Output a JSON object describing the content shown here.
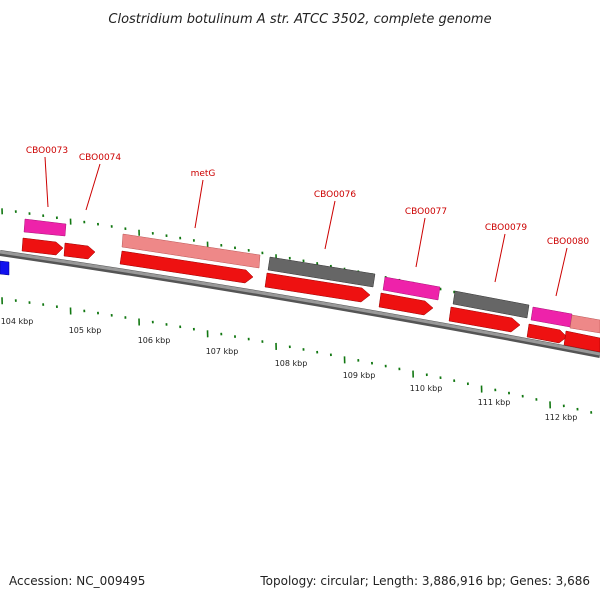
{
  "header": {
    "title": "Clostridium botulinum A str. ATCC 3502, complete genome"
  },
  "footer": {
    "accession": "Accession: NC_009495",
    "summary": "Topology: circular; Length: 3,886,916 bp; Genes: 3,686"
  },
  "colors": {
    "forward_cds": "#ee1111",
    "rrna_light": "#ee8888",
    "pink_gene": "#ee22aa",
    "grey_gene": "#666666",
    "blue_gene": "#1111ee",
    "backbone": "#888888",
    "tick": "#117711",
    "label": "#cc0000"
  },
  "gene_labels": [
    "CBO0073",
    "CBO0074",
    "metG",
    "CBO0076",
    "CBO0077",
    "CBO0079",
    "CBO0080"
  ],
  "kbp_labels": [
    "104 kbp",
    "105 kbp",
    "106 kbp",
    "107 kbp",
    "108 kbp",
    "109 kbp",
    "110 kbp",
    "111 kbp",
    "112 kbp"
  ]
}
